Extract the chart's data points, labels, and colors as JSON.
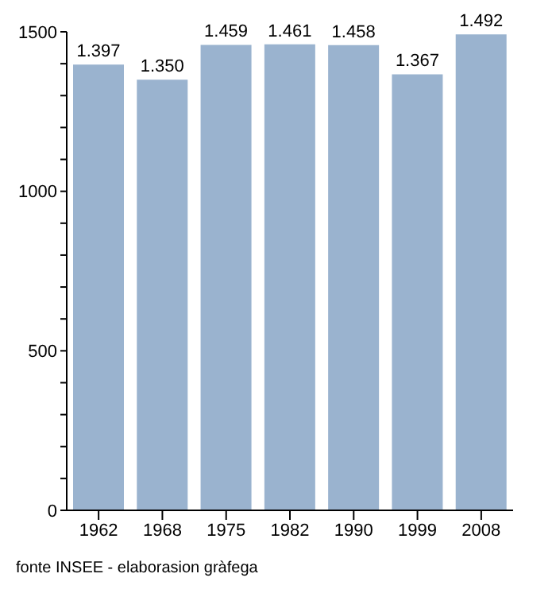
{
  "chart_data": {
    "type": "bar",
    "categories": [
      "1962",
      "1968",
      "1975",
      "1982",
      "1990",
      "1999",
      "2008"
    ],
    "values": [
      1397,
      1350,
      1459,
      1461,
      1458,
      1367,
      1492
    ],
    "value_labels": [
      "1.397",
      "1.350",
      "1.459",
      "1.461",
      "1.458",
      "1.367",
      "1.492"
    ],
    "color": "#9ab3cf",
    "ylim": [
      0,
      1500
    ],
    "yticks": [
      0,
      {
        "value": 100,
        "label": null
      },
      {
        "value": 200,
        "label": null
      },
      {
        "value": 300,
        "label": null
      },
      {
        "value": 400,
        "label": null
      },
      500,
      {
        "value": 600,
        "label": null
      },
      {
        "value": 700,
        "label": null
      },
      {
        "value": 800,
        "label": null
      },
      {
        "value": 900,
        "label": null
      },
      1000,
      {
        "value": 1100,
        "label": null
      },
      {
        "value": 1200,
        "label": null
      },
      {
        "value": 1300,
        "label": null
      },
      {
        "value": 1400,
        "label": null
      },
      1500
    ],
    "grid": false,
    "legend": false,
    "annotations": [
      "fonte INSEE - elaborasion gràfega"
    ]
  }
}
